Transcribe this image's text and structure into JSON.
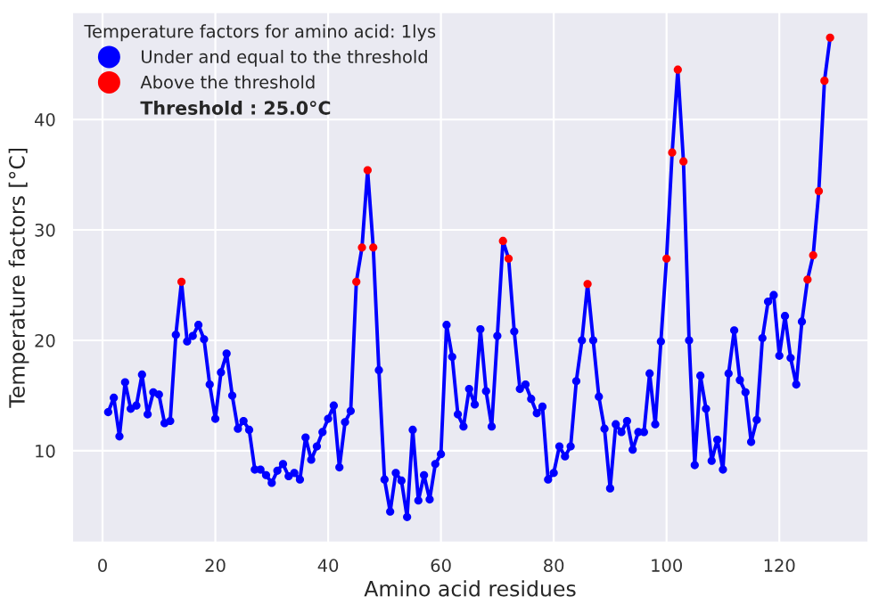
{
  "chart_data": {
    "type": "line",
    "xlabel": "Amino acid residues",
    "ylabel": "Temperature factors [°C]",
    "legend_title": "Temperature factors for amino acid: 1lys",
    "annotations": [
      "Threshold : 25.0°C"
    ],
    "x": [
      1,
      2,
      3,
      4,
      5,
      6,
      7,
      8,
      9,
      10,
      11,
      12,
      13,
      14,
      15,
      16,
      17,
      18,
      19,
      20,
      21,
      22,
      23,
      24,
      25,
      26,
      27,
      28,
      29,
      30,
      31,
      32,
      33,
      34,
      35,
      36,
      37,
      38,
      39,
      40,
      41,
      42,
      43,
      44,
      45,
      46,
      47,
      48,
      49,
      50,
      51,
      52,
      53,
      54,
      55,
      56,
      57,
      58,
      59,
      60,
      61,
      62,
      63,
      64,
      65,
      66,
      67,
      68,
      69,
      70,
      71,
      72,
      73,
      74,
      75,
      76,
      77,
      78,
      79,
      80,
      81,
      82,
      83,
      84,
      85,
      86,
      87,
      88,
      89,
      90,
      91,
      92,
      93,
      94,
      95,
      96,
      97,
      98,
      99,
      100,
      101,
      102,
      103,
      104,
      105,
      106,
      107,
      108,
      109,
      110,
      111,
      112,
      113,
      114,
      115,
      116,
      117,
      118,
      119,
      120,
      121,
      122,
      123,
      124,
      125,
      126,
      127,
      128,
      129
    ],
    "series": [
      {
        "color": "#0000ff",
        "marker": "none",
        "values": [
          13.5,
          14.8,
          11.3,
          16.2,
          13.8,
          14.1,
          16.9,
          13.3,
          15.3,
          15.1,
          12.5,
          12.7,
          20.5,
          25.3,
          19.9,
          20.4,
          21.4,
          20.1,
          16.0,
          12.9,
          17.1,
          18.8,
          15.0,
          12.0,
          12.7,
          11.9,
          8.3,
          8.3,
          7.8,
          7.1,
          8.2,
          8.8,
          7.7,
          8.0,
          7.4,
          11.2,
          9.2,
          10.4,
          11.7,
          12.9,
          14.1,
          8.5,
          12.6,
          13.6,
          25.3,
          28.4,
          35.4,
          28.4,
          17.3,
          7.4,
          4.5,
          8.0,
          7.3,
          4.0,
          11.9,
          5.5,
          7.8,
          5.6,
          8.8,
          9.7,
          21.4,
          18.5,
          13.3,
          12.2,
          15.6,
          14.2,
          21.0,
          15.4,
          12.2,
          20.4,
          29.0,
          27.4,
          20.8,
          15.6,
          16.0,
          14.7,
          13.4,
          14.0,
          7.4,
          8.0,
          10.4,
          9.5,
          10.4,
          16.3,
          20.0,
          25.1,
          20.0,
          14.9,
          12.0,
          6.6,
          12.4,
          11.7,
          12.7,
          10.1,
          11.7,
          11.7,
          17.0,
          12.4,
          19.9,
          27.4,
          37.0,
          44.5,
          36.2,
          20.0,
          8.7,
          16.8,
          13.8,
          9.1,
          11.0,
          8.3,
          17.0,
          20.9,
          16.4,
          15.3,
          10.8,
          12.8,
          20.2,
          23.5,
          24.1,
          18.6,
          22.2,
          18.4,
          16.0,
          21.7,
          25.5,
          27.7,
          33.5,
          43.5,
          47.4
        ]
      },
      {
        "type": "scatter",
        "name": "Under and equal to the threshold",
        "color": "#0000ff",
        "values": [
          13.5,
          14.8,
          11.3,
          16.2,
          13.8,
          14.1,
          16.9,
          13.3,
          15.3,
          15.1,
          12.5,
          12.7,
          20.5,
          null,
          19.9,
          20.4,
          21.4,
          20.1,
          16.0,
          12.9,
          17.1,
          18.8,
          15.0,
          12.0,
          12.7,
          11.9,
          8.3,
          8.3,
          7.8,
          7.1,
          8.2,
          8.8,
          7.7,
          8.0,
          7.4,
          11.2,
          9.2,
          10.4,
          11.7,
          12.9,
          14.1,
          8.5,
          12.6,
          13.6,
          null,
          null,
          null,
          null,
          17.3,
          7.4,
          4.5,
          8.0,
          7.3,
          4.0,
          11.9,
          5.5,
          7.8,
          5.6,
          8.8,
          9.7,
          21.4,
          18.5,
          13.3,
          12.2,
          15.6,
          14.2,
          21.0,
          15.4,
          12.2,
          20.4,
          null,
          null,
          20.8,
          15.6,
          16.0,
          14.7,
          13.4,
          14.0,
          7.4,
          8.0,
          10.4,
          9.5,
          10.4,
          16.3,
          20.0,
          null,
          20.0,
          14.9,
          12.0,
          6.6,
          12.4,
          11.7,
          12.7,
          10.1,
          11.7,
          11.7,
          17.0,
          12.4,
          19.9,
          null,
          null,
          null,
          null,
          20.0,
          8.7,
          16.8,
          13.8,
          9.1,
          11.0,
          8.3,
          17.0,
          20.9,
          16.4,
          15.3,
          10.8,
          12.8,
          20.2,
          23.5,
          24.1,
          18.6,
          22.2,
          18.4,
          16.0,
          21.7,
          null,
          null,
          null,
          null,
          null
        ]
      },
      {
        "type": "scatter",
        "name": "Above the threshold",
        "color": "#ff0000",
        "values": [
          null,
          null,
          null,
          null,
          null,
          null,
          null,
          null,
          null,
          null,
          null,
          null,
          null,
          25.3,
          null,
          null,
          null,
          null,
          null,
          null,
          null,
          null,
          null,
          null,
          null,
          null,
          null,
          null,
          null,
          null,
          null,
          null,
          null,
          null,
          null,
          null,
          null,
          null,
          null,
          null,
          null,
          null,
          null,
          null,
          25.3,
          28.4,
          35.4,
          28.4,
          null,
          null,
          null,
          null,
          null,
          null,
          null,
          null,
          null,
          null,
          null,
          null,
          null,
          null,
          null,
          null,
          null,
          null,
          null,
          null,
          null,
          null,
          29.0,
          27.4,
          null,
          null,
          null,
          null,
          null,
          null,
          null,
          null,
          null,
          null,
          null,
          null,
          null,
          25.1,
          null,
          null,
          null,
          null,
          null,
          null,
          null,
          null,
          null,
          null,
          null,
          null,
          null,
          27.4,
          37.0,
          44.5,
          36.2,
          null,
          null,
          null,
          null,
          null,
          null,
          null,
          null,
          null,
          null,
          null,
          null,
          null,
          null,
          null,
          null,
          null,
          null,
          null,
          null,
          null,
          25.5,
          27.7,
          33.5,
          43.5,
          47.4
        ]
      }
    ],
    "xlim": [
      -5.4,
      135.8
    ],
    "ylim": [
      1.7,
      49.7
    ],
    "xticks": [
      0,
      20,
      40,
      60,
      80,
      100,
      120
    ],
    "yticks": [
      10,
      20,
      30,
      40
    ],
    "grid": true,
    "legend": "top left",
    "marker": "circle"
  }
}
